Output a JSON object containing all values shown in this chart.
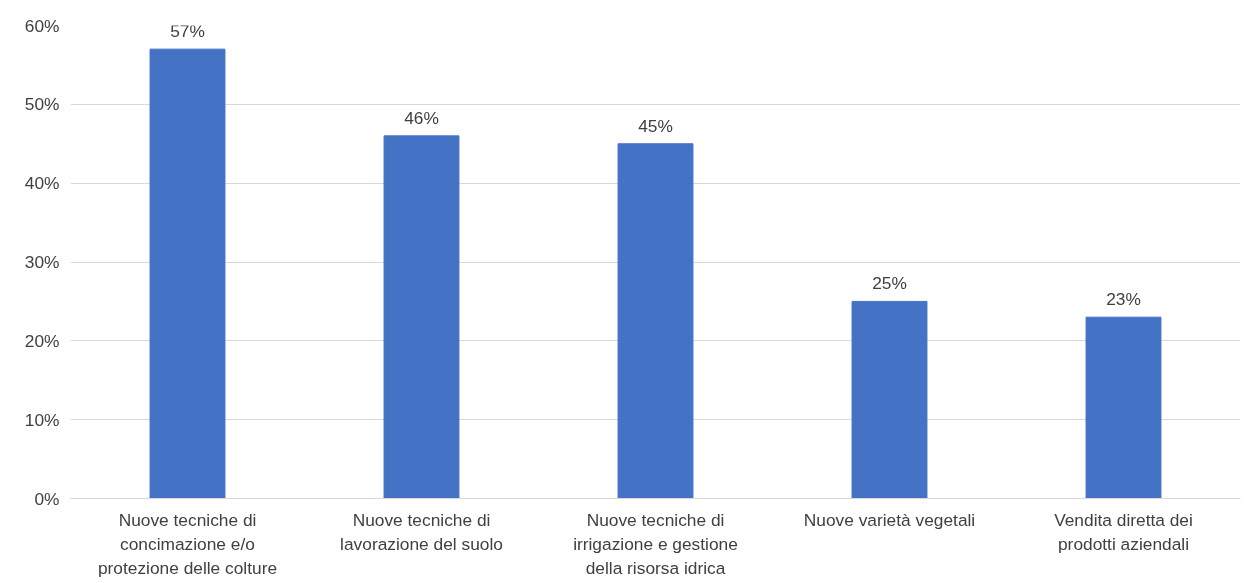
{
  "chart_data": {
    "type": "bar",
    "categories": [
      "Nuove tecniche di concimazione e/o protezione delle colture",
      "Nuove tecniche di lavorazione del suolo",
      "Nuove tecniche di irrigazione e gestione della risorsa idrica",
      "Nuove varietà vegetali",
      "Vendita diretta dei prodotti aziendali"
    ],
    "values": [
      57,
      46,
      45,
      25,
      23
    ],
    "value_labels": [
      "57%",
      "46%",
      "45%",
      "25%",
      "23%"
    ],
    "color": "#4472c4",
    "ylim": [
      0,
      60
    ],
    "yticks": [
      {
        "value": 0,
        "label": "0%"
      },
      {
        "value": 10,
        "label": "10%"
      },
      {
        "value": 20,
        "label": "20%"
      },
      {
        "value": 30,
        "label": "30%"
      },
      {
        "value": 40,
        "label": "40%"
      },
      {
        "value": 50,
        "label": "50%"
      },
      {
        "value": 60,
        "label": "60%"
      }
    ],
    "grid": "y"
  }
}
